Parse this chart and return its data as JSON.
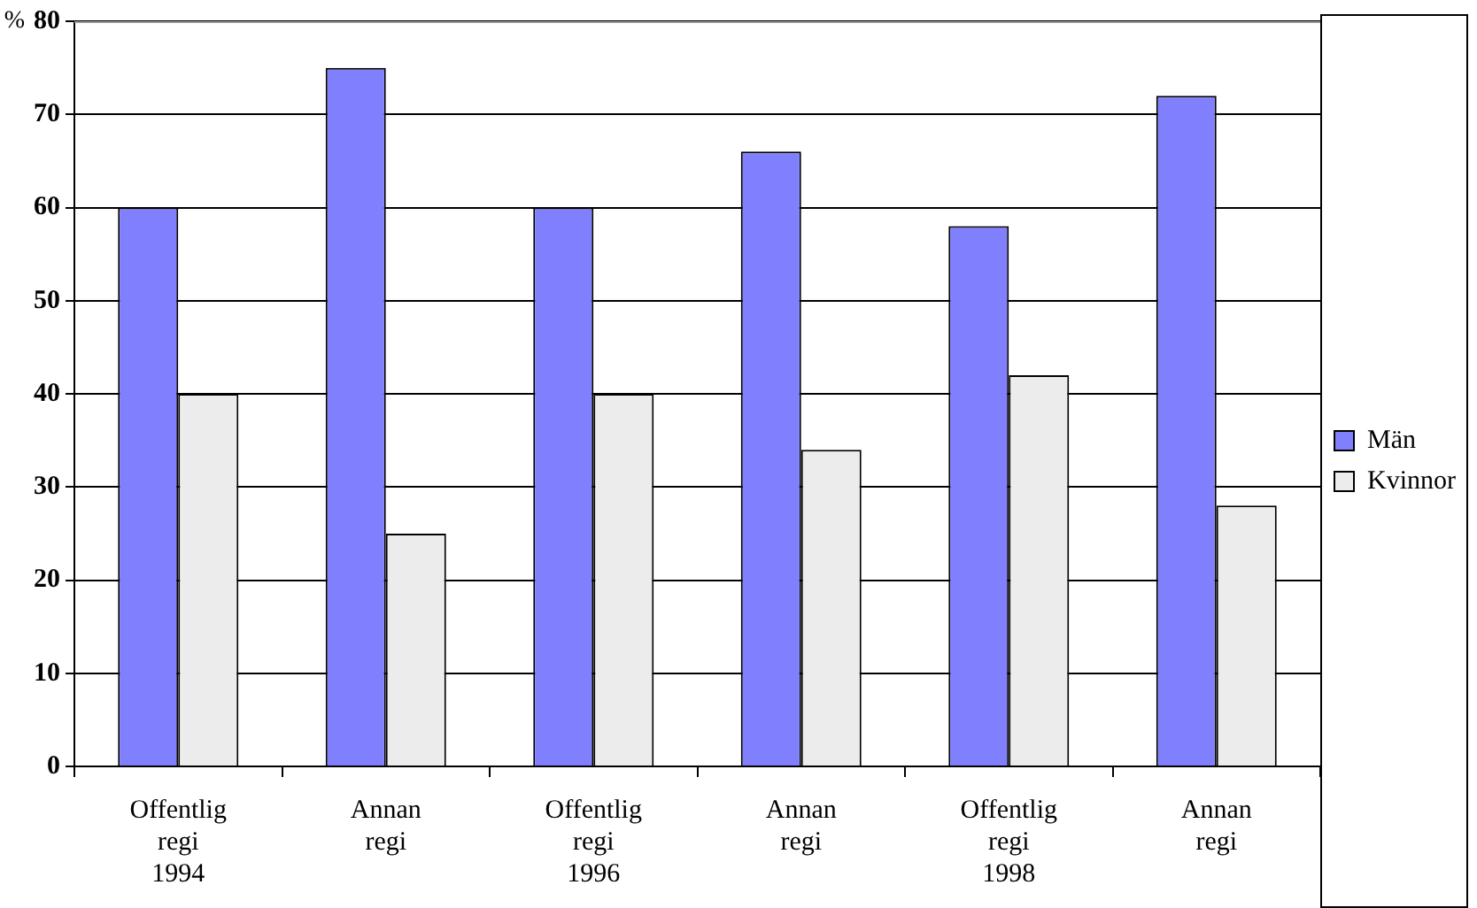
{
  "chart_data": {
    "type": "bar",
    "ylabel": "%",
    "categories": [
      "Offentlig\nregi\n1994",
      "Annan\nregi",
      "Offentlig\nregi\n1996",
      "Annan\nregi",
      "Offentlig\nregi\n1998",
      "Annan\nregi"
    ],
    "series": [
      {
        "name": "Män",
        "color": "#8080ff",
        "values": [
          60,
          75,
          60,
          66,
          58,
          72
        ]
      },
      {
        "name": "Kvinnor",
        "color": "#ececec",
        "values": [
          40,
          25,
          40,
          34,
          42,
          28
        ]
      }
    ],
    "ylim": [
      0,
      80
    ],
    "yticks": [
      0,
      10,
      20,
      30,
      40,
      50,
      60,
      70,
      80
    ],
    "grid": "y",
    "legend": "right"
  }
}
